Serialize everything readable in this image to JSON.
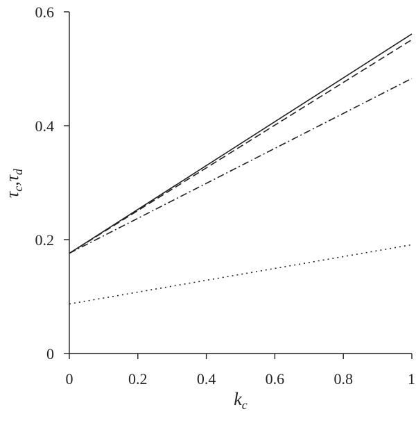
{
  "chart_data": {
    "type": "line",
    "xlabel": "k_c",
    "ylabel": "τ_c,τ_d",
    "xlim": [
      0,
      1
    ],
    "ylim": [
      0,
      0.6
    ],
    "x_ticks": [
      "0",
      "0.2",
      "0.4",
      "0.6",
      "0.8",
      "1"
    ],
    "y_ticks": [
      "0",
      "0.2",
      "0.4",
      "0.6"
    ],
    "grid": false,
    "series": [
      {
        "style": "solid",
        "x": [
          0,
          1
        ],
        "y": [
          0.176,
          0.561
        ]
      },
      {
        "style": "dashed",
        "x": [
          0,
          1
        ],
        "y": [
          0.176,
          0.551
        ]
      },
      {
        "style": "dash-dot",
        "x": [
          0,
          1
        ],
        "y": [
          0.176,
          0.483
        ]
      },
      {
        "style": "dotted",
        "x": [
          0,
          1
        ],
        "y": [
          0.087,
          0.191
        ]
      }
    ]
  },
  "axes": {
    "xlabel_main": "k",
    "xlabel_sub": "c",
    "ylabel_part1_main": "τ",
    "ylabel_part1_sub": "c",
    "ylabel_separator": ",",
    "ylabel_part2_main": "τ",
    "ylabel_part2_sub": "d"
  }
}
